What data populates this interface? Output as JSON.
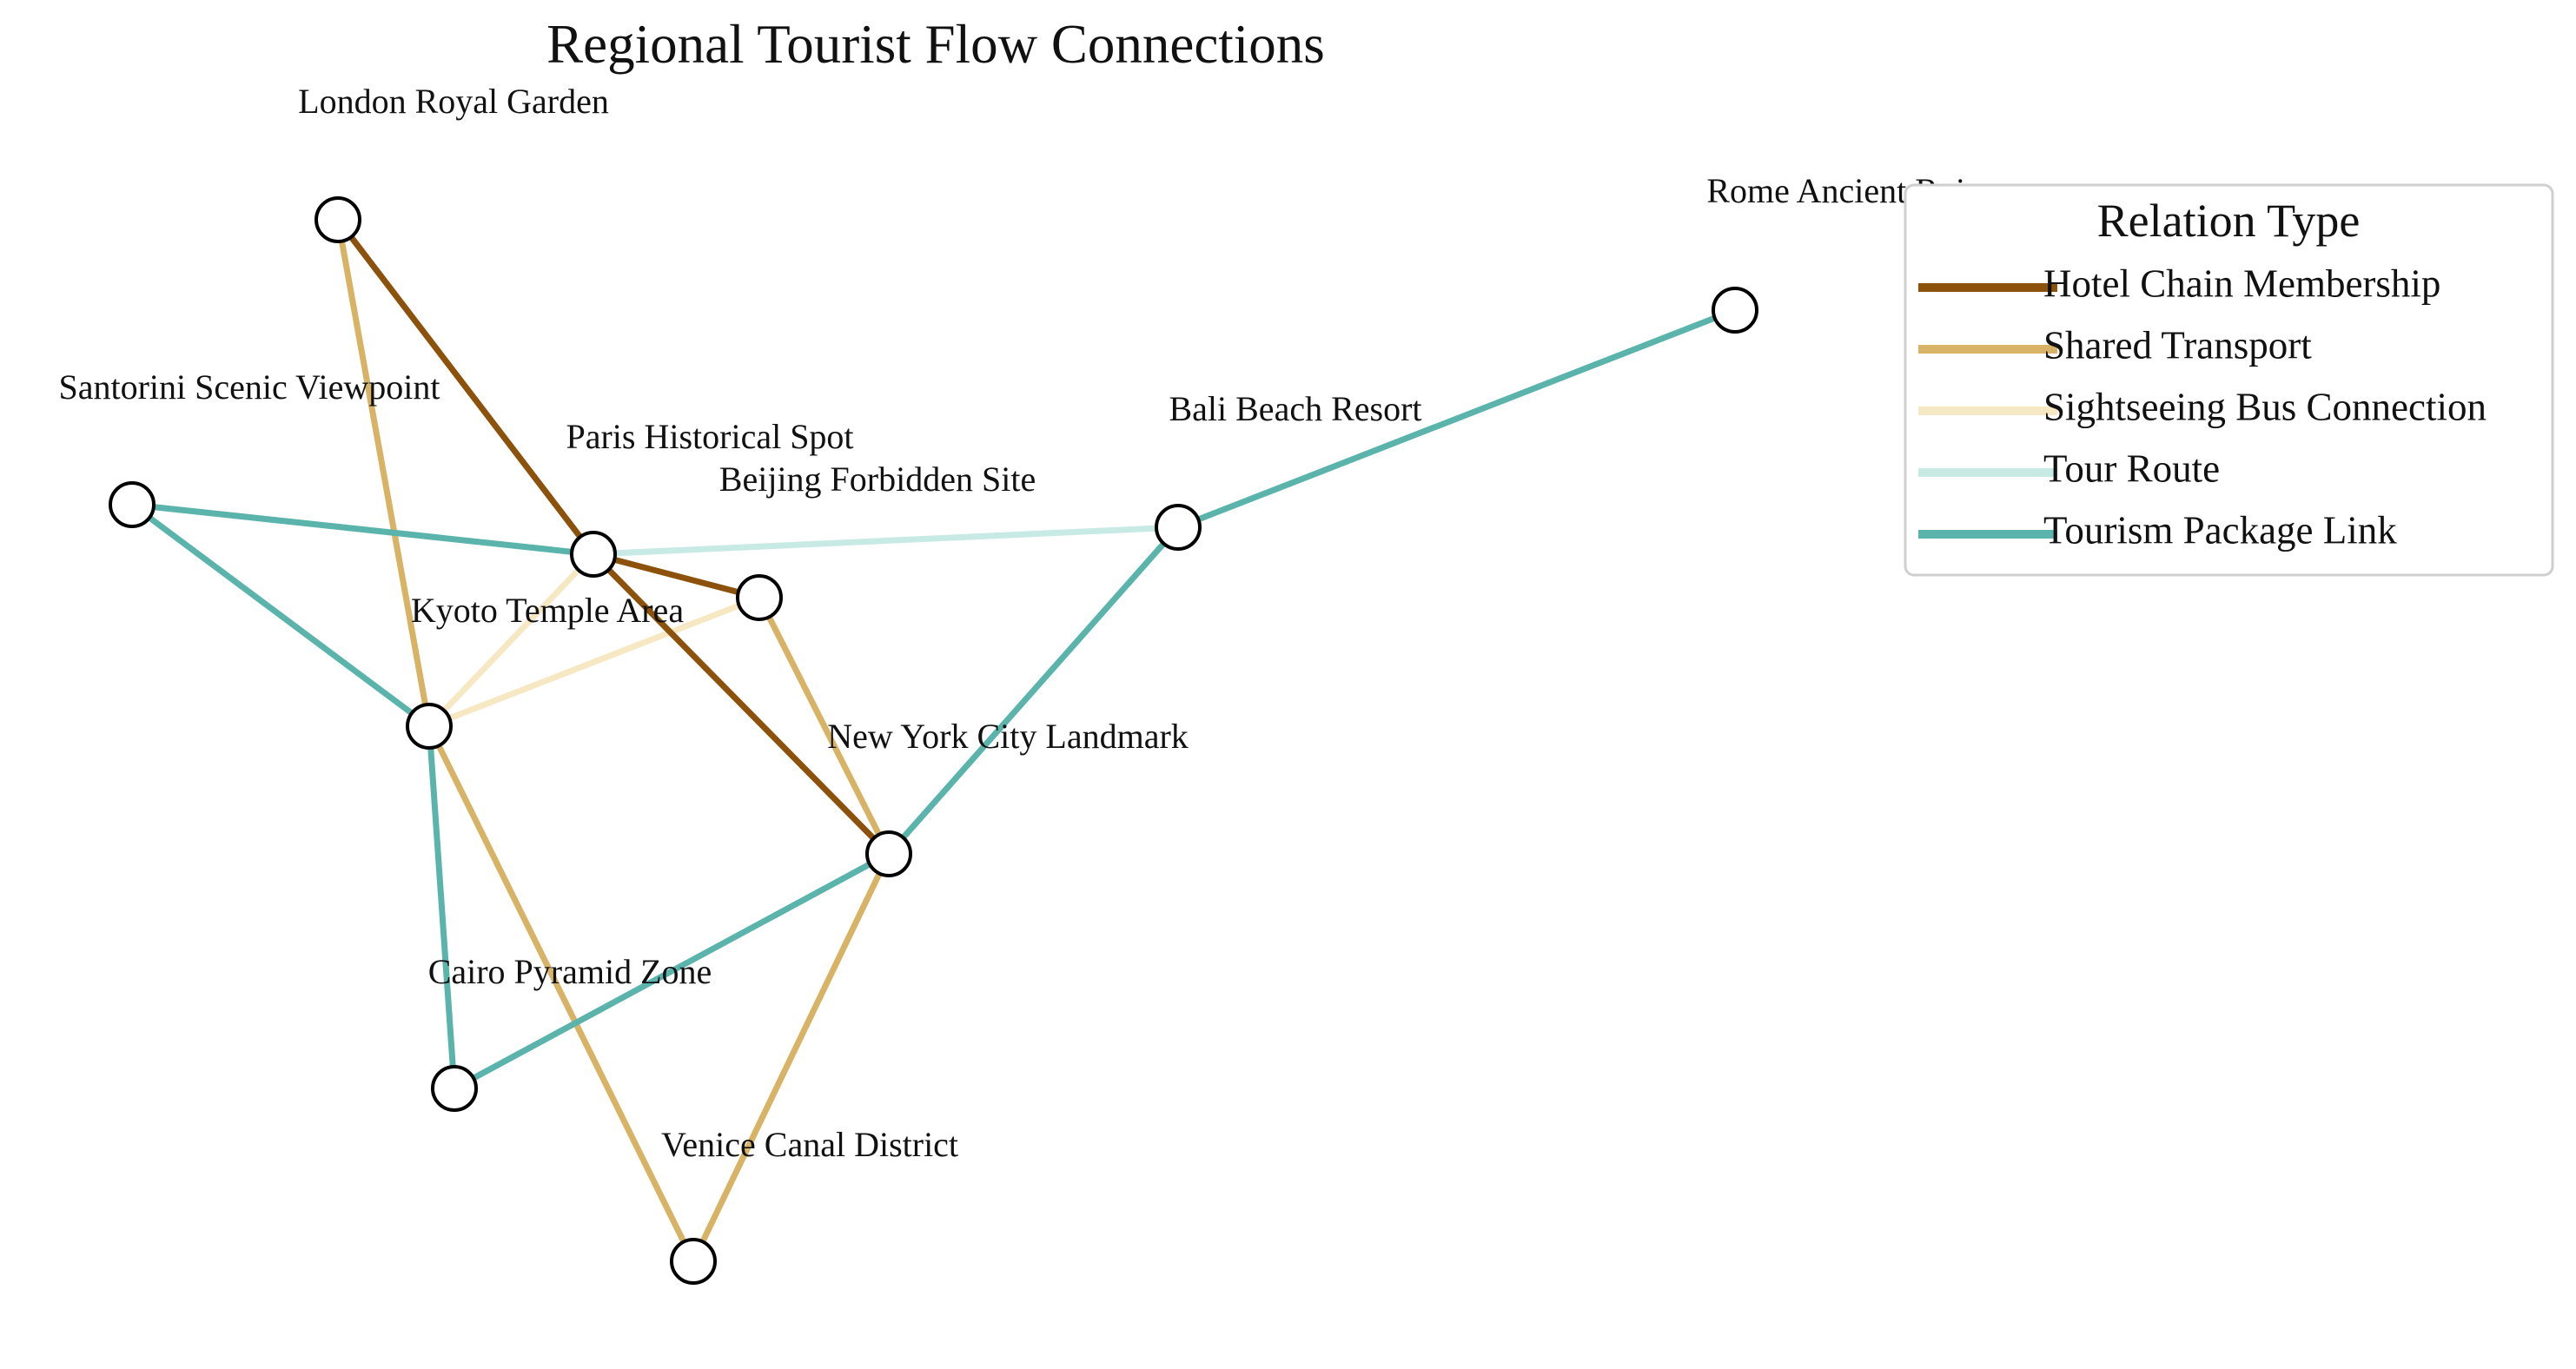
{
  "title": "Regional Tourist Flow Connections",
  "legend": {
    "title": "Relation Type",
    "items": [
      {
        "key": "hotel",
        "label": "Hotel Chain Membership",
        "color": "#8c510a"
      },
      {
        "key": "shared",
        "label": "Shared Transport",
        "color": "#d8b365"
      },
      {
        "key": "bus",
        "label": "Sightseeing Bus Connection",
        "color": "#f6e8c3"
      },
      {
        "key": "tour",
        "label": "Tour Route",
        "color": "#c7eae5"
      },
      {
        "key": "package",
        "label": "Tourism Package Link",
        "color": "#5ab4ac"
      }
    ]
  },
  "nodes": [
    {
      "id": "london",
      "label": "London Royal Garden"
    },
    {
      "id": "rome",
      "label": "Rome Ancient Ruins"
    },
    {
      "id": "santorini",
      "label": "Santorini Scenic Viewpoint"
    },
    {
      "id": "paris",
      "label": "Paris Historical Spot"
    },
    {
      "id": "bali",
      "label": "Bali Beach Resort"
    },
    {
      "id": "beijing",
      "label": "Beijing Forbidden Site"
    },
    {
      "id": "kyoto",
      "label": "Kyoto Temple Area"
    },
    {
      "id": "newyork",
      "label": "New York City Landmark"
    },
    {
      "id": "cairo",
      "label": "Cairo Pyramid Zone"
    },
    {
      "id": "venice",
      "label": "Venice Canal District"
    }
  ],
  "edges": [
    {
      "source": "london",
      "target": "paris",
      "relation": "hotel"
    },
    {
      "source": "paris",
      "target": "beijing",
      "relation": "hotel"
    },
    {
      "source": "paris",
      "target": "newyork",
      "relation": "hotel"
    },
    {
      "source": "london",
      "target": "kyoto",
      "relation": "shared"
    },
    {
      "source": "beijing",
      "target": "newyork",
      "relation": "shared"
    },
    {
      "source": "kyoto",
      "target": "venice",
      "relation": "shared"
    },
    {
      "source": "newyork",
      "target": "venice",
      "relation": "shared"
    },
    {
      "source": "kyoto",
      "target": "paris",
      "relation": "bus"
    },
    {
      "source": "kyoto",
      "target": "beijing",
      "relation": "bus"
    },
    {
      "source": "paris",
      "target": "bali",
      "relation": "tour"
    },
    {
      "source": "santorini",
      "target": "paris",
      "relation": "package"
    },
    {
      "source": "santorini",
      "target": "kyoto",
      "relation": "package"
    },
    {
      "source": "kyoto",
      "target": "cairo",
      "relation": "package"
    },
    {
      "source": "cairo",
      "target": "newyork",
      "relation": "package"
    },
    {
      "source": "newyork",
      "target": "bali",
      "relation": "package"
    },
    {
      "source": "bali",
      "target": "rome",
      "relation": "package"
    }
  ]
}
